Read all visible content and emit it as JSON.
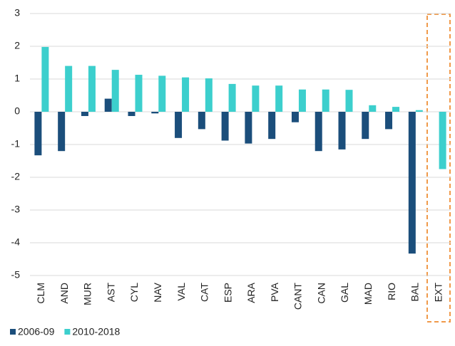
{
  "chart_data": {
    "type": "bar",
    "categories": [
      "CLM",
      "AND",
      "MUR",
      "AST",
      "CYL",
      "NAV",
      "VAL",
      "CAT",
      "ESP",
      "ARA",
      "PVA",
      "CANT",
      "CAN",
      "GAL",
      "MAD",
      "RIO",
      "BAL",
      "EXT"
    ],
    "series": [
      {
        "name": "2006-09",
        "color": "#1b4e7b",
        "values": [
          -1.33,
          -1.2,
          -0.13,
          0.4,
          -0.13,
          -0.05,
          -0.8,
          -0.53,
          -0.88,
          -0.97,
          -0.83,
          -0.32,
          -1.2,
          -1.15,
          -0.83,
          -0.53,
          -4.33,
          null
        ]
      },
      {
        "name": "2010-2018",
        "color": "#3ccfcd",
        "values": [
          1.98,
          1.4,
          1.4,
          1.28,
          1.13,
          1.1,
          1.05,
          1.02,
          0.85,
          0.8,
          0.8,
          0.68,
          0.68,
          0.67,
          0.2,
          0.15,
          0.05,
          -1.75
        ]
      }
    ],
    "ylim": [
      -5,
      3
    ],
    "yticks": [
      -5,
      -4,
      -3,
      -2,
      -1,
      0,
      1,
      2,
      3
    ],
    "grid": true
  }
}
